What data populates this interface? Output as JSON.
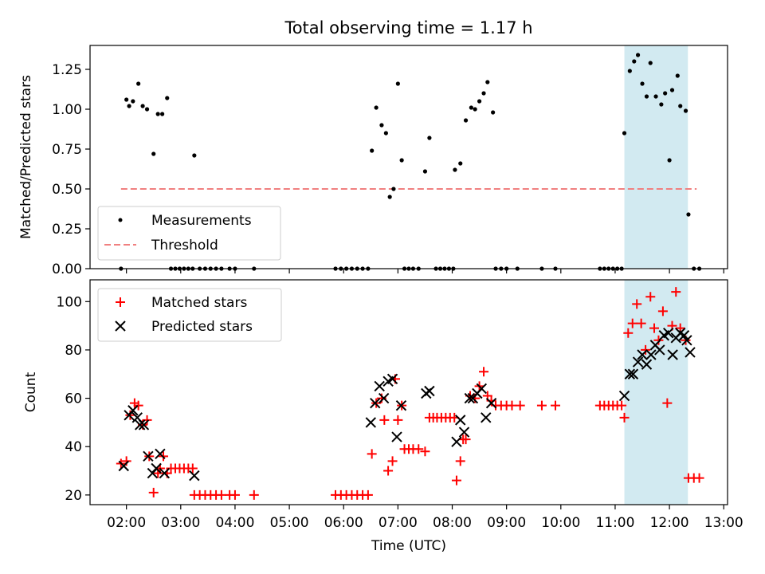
{
  "title": "Total observing time = 1.17 h",
  "chart_data": [
    {
      "type": "scatter",
      "ylabel": "Matched/Predicted stars",
      "ylim": [
        0,
        1.4
      ],
      "yticks": [
        0,
        0.25,
        0.5,
        0.75,
        1.0,
        1.25
      ],
      "ytick_labels": [
        "0.00",
        "0.25",
        "0.50",
        "0.75",
        "1.00",
        "1.25"
      ],
      "xlim": [
        1.33,
        13.07
      ],
      "grid": false,
      "legend_position": "lower-left",
      "highlight_span": {
        "x": [
          11.17,
          12.34
        ],
        "color": "#add8e6"
      },
      "threshold": {
        "label": "Threshold",
        "value": 0.5,
        "x": [
          1.9,
          12.5
        ],
        "color": "#f08080"
      },
      "series": [
        {
          "name": "Measurements",
          "color": "#000000",
          "points": [
            [
              1.9,
              0
            ],
            [
              2.0,
              1.06
            ],
            [
              2.05,
              1.02
            ],
            [
              2.12,
              1.05
            ],
            [
              2.22,
              1.16
            ],
            [
              2.3,
              1.02
            ],
            [
              2.38,
              1.0
            ],
            [
              2.5,
              0.72
            ],
            [
              2.58,
              0.97
            ],
            [
              2.66,
              0.97
            ],
            [
              2.75,
              1.07
            ],
            [
              2.82,
              0
            ],
            [
              2.9,
              0
            ],
            [
              2.98,
              0
            ],
            [
              3.06,
              0
            ],
            [
              3.14,
              0
            ],
            [
              3.22,
              0
            ],
            [
              3.25,
              0.71
            ],
            [
              3.35,
              0
            ],
            [
              3.45,
              0
            ],
            [
              3.55,
              0
            ],
            [
              3.65,
              0
            ],
            [
              3.75,
              0
            ],
            [
              3.9,
              0
            ],
            [
              4.0,
              0
            ],
            [
              4.35,
              0
            ],
            [
              5.85,
              0
            ],
            [
              5.95,
              0
            ],
            [
              6.05,
              0
            ],
            [
              6.15,
              0
            ],
            [
              6.25,
              0
            ],
            [
              6.35,
              0
            ],
            [
              6.45,
              0
            ],
            [
              6.52,
              0.74
            ],
            [
              6.6,
              1.01
            ],
            [
              6.7,
              0.9
            ],
            [
              6.78,
              0.85
            ],
            [
              6.85,
              0.45
            ],
            [
              6.92,
              0.5
            ],
            [
              7.0,
              1.16
            ],
            [
              7.07,
              0.68
            ],
            [
              7.12,
              0
            ],
            [
              7.2,
              0
            ],
            [
              7.28,
              0
            ],
            [
              7.38,
              0
            ],
            [
              7.5,
              0.61
            ],
            [
              7.58,
              0.82
            ],
            [
              7.7,
              0
            ],
            [
              7.78,
              0
            ],
            [
              7.86,
              0
            ],
            [
              7.94,
              0
            ],
            [
              8.02,
              0
            ],
            [
              8.05,
              0.62
            ],
            [
              8.15,
              0.66
            ],
            [
              8.25,
              0.93
            ],
            [
              8.35,
              1.01
            ],
            [
              8.42,
              1.0
            ],
            [
              8.5,
              1.05
            ],
            [
              8.58,
              1.1
            ],
            [
              8.65,
              1.17
            ],
            [
              8.75,
              0.98
            ],
            [
              8.8,
              0
            ],
            [
              8.9,
              0
            ],
            [
              9.0,
              0
            ],
            [
              9.2,
              0
            ],
            [
              9.65,
              0
            ],
            [
              9.9,
              0
            ],
            [
              10.72,
              0
            ],
            [
              10.8,
              0
            ],
            [
              10.88,
              0
            ],
            [
              10.96,
              0
            ],
            [
              11.04,
              0
            ],
            [
              11.12,
              0
            ],
            [
              11.17,
              0.85
            ],
            [
              11.27,
              1.24
            ],
            [
              11.35,
              1.3
            ],
            [
              11.42,
              1.34
            ],
            [
              11.5,
              1.16
            ],
            [
              11.58,
              1.08
            ],
            [
              11.65,
              1.29
            ],
            [
              11.75,
              1.08
            ],
            [
              11.85,
              1.03
            ],
            [
              11.92,
              1.1
            ],
            [
              12.0,
              0.68
            ],
            [
              12.05,
              1.12
            ],
            [
              12.15,
              1.21
            ],
            [
              12.2,
              1.02
            ],
            [
              12.3,
              0.99
            ],
            [
              12.35,
              0.34
            ],
            [
              12.45,
              0
            ],
            [
              12.55,
              0
            ]
          ]
        },
        {
          "name": "Threshold",
          "style": "dashed",
          "color": "#f08080",
          "points": [
            [
              1.9,
              0.5
            ],
            [
              12.5,
              0.5
            ]
          ]
        }
      ]
    },
    {
      "type": "scatter",
      "xlabel": "Time (UTC)",
      "ylabel": "Count",
      "ylim": [
        16,
        109
      ],
      "yticks": [
        20,
        40,
        60,
        80,
        100
      ],
      "ytick_labels": [
        "20",
        "40",
        "60",
        "80",
        "100"
      ],
      "xlim": [
        1.33,
        13.07
      ],
      "xticks": [
        2,
        3,
        4,
        5,
        6,
        7,
        8,
        9,
        10,
        11,
        12,
        13
      ],
      "xtick_labels": [
        "02:00",
        "03:00",
        "04:00",
        "05:00",
        "06:00",
        "07:00",
        "08:00",
        "09:00",
        "10:00",
        "11:00",
        "12:00",
        "13:00"
      ],
      "grid": false,
      "legend_position": "upper-left",
      "highlight_span": {
        "x": [
          11.17,
          12.34
        ],
        "color": "#add8e6"
      },
      "series": [
        {
          "name": "Matched stars",
          "marker": "plus",
          "color": "#ff0000",
          "points": [
            [
              1.9,
              33
            ],
            [
              2.0,
              34
            ],
            [
              2.07,
              53
            ],
            [
              2.15,
              58
            ],
            [
              2.22,
              57
            ],
            [
              2.3,
              49
            ],
            [
              2.38,
              51
            ],
            [
              2.42,
              36
            ],
            [
              2.5,
              21
            ],
            [
              2.58,
              29
            ],
            [
              2.62,
              31
            ],
            [
              2.68,
              36
            ],
            [
              2.75,
              29
            ],
            [
              2.82,
              31
            ],
            [
              2.9,
              31
            ],
            [
              2.98,
              31
            ],
            [
              3.06,
              31
            ],
            [
              3.14,
              31
            ],
            [
              3.22,
              31
            ],
            [
              3.25,
              20
            ],
            [
              3.35,
              20
            ],
            [
              3.45,
              20
            ],
            [
              3.55,
              20
            ],
            [
              3.65,
              20
            ],
            [
              3.75,
              20
            ],
            [
              3.9,
              20
            ],
            [
              4.0,
              20
            ],
            [
              4.35,
              20
            ],
            [
              5.85,
              20
            ],
            [
              5.95,
              20
            ],
            [
              6.05,
              20
            ],
            [
              6.15,
              20
            ],
            [
              6.25,
              20
            ],
            [
              6.35,
              20
            ],
            [
              6.45,
              20
            ],
            [
              6.52,
              37
            ],
            [
              6.6,
              58
            ],
            [
              6.7,
              60
            ],
            [
              6.75,
              51
            ],
            [
              6.82,
              30
            ],
            [
              6.9,
              34
            ],
            [
              6.95,
              68
            ],
            [
              7.0,
              51
            ],
            [
              7.07,
              57
            ],
            [
              7.12,
              39
            ],
            [
              7.2,
              39
            ],
            [
              7.28,
              39
            ],
            [
              7.38,
              39
            ],
            [
              7.5,
              38
            ],
            [
              7.58,
              52
            ],
            [
              7.65,
              52
            ],
            [
              7.72,
              52
            ],
            [
              7.8,
              52
            ],
            [
              7.88,
              52
            ],
            [
              7.96,
              52
            ],
            [
              8.04,
              52
            ],
            [
              8.08,
              26
            ],
            [
              8.15,
              34
            ],
            [
              8.2,
              43
            ],
            [
              8.25,
              43
            ],
            [
              8.33,
              61
            ],
            [
              8.42,
              60
            ],
            [
              8.5,
              65
            ],
            [
              8.58,
              71
            ],
            [
              8.65,
              61
            ],
            [
              8.72,
              59
            ],
            [
              8.8,
              57
            ],
            [
              8.9,
              57
            ],
            [
              9.0,
              57
            ],
            [
              9.1,
              57
            ],
            [
              9.25,
              57
            ],
            [
              9.65,
              57
            ],
            [
              9.9,
              57
            ],
            [
              10.72,
              57
            ],
            [
              10.8,
              57
            ],
            [
              10.88,
              57
            ],
            [
              10.96,
              57
            ],
            [
              11.04,
              57
            ],
            [
              11.12,
              57
            ],
            [
              11.17,
              52
            ],
            [
              11.24,
              87
            ],
            [
              11.32,
              91
            ],
            [
              11.4,
              99
            ],
            [
              11.48,
              91
            ],
            [
              11.56,
              80
            ],
            [
              11.65,
              102
            ],
            [
              11.72,
              89
            ],
            [
              11.8,
              84
            ],
            [
              11.88,
              96
            ],
            [
              11.96,
              58
            ],
            [
              12.05,
              90
            ],
            [
              12.12,
              104
            ],
            [
              12.2,
              89
            ],
            [
              12.3,
              84
            ],
            [
              12.35,
              27
            ],
            [
              12.45,
              27
            ],
            [
              12.55,
              27
            ]
          ]
        },
        {
          "name": "Predicted stars",
          "marker": "x",
          "color": "#000000",
          "points": [
            [
              1.95,
              32
            ],
            [
              2.05,
              53
            ],
            [
              2.12,
              55
            ],
            [
              2.2,
              52
            ],
            [
              2.25,
              49
            ],
            [
              2.32,
              49
            ],
            [
              2.4,
              36
            ],
            [
              2.48,
              29
            ],
            [
              2.55,
              31
            ],
            [
              2.62,
              37
            ],
            [
              2.7,
              29
            ],
            [
              3.25,
              28
            ],
            [
              6.5,
              50
            ],
            [
              6.58,
              58
            ],
            [
              6.66,
              65
            ],
            [
              6.74,
              60
            ],
            [
              6.82,
              67
            ],
            [
              6.9,
              68
            ],
            [
              6.98,
              44
            ],
            [
              7.06,
              57
            ],
            [
              7.52,
              62
            ],
            [
              7.58,
              63
            ],
            [
              8.08,
              42
            ],
            [
              8.15,
              51
            ],
            [
              8.22,
              46
            ],
            [
              8.32,
              60
            ],
            [
              8.38,
              60
            ],
            [
              8.46,
              62
            ],
            [
              8.54,
              64
            ],
            [
              8.62,
              52
            ],
            [
              8.72,
              58
            ],
            [
              11.17,
              61
            ],
            [
              11.27,
              70
            ],
            [
              11.33,
              70
            ],
            [
              11.42,
              75
            ],
            [
              11.5,
              78
            ],
            [
              11.58,
              74
            ],
            [
              11.66,
              78
            ],
            [
              11.74,
              82
            ],
            [
              11.82,
              80
            ],
            [
              11.9,
              86
            ],
            [
              11.98,
              87
            ],
            [
              12.06,
              78
            ],
            [
              12.12,
              85
            ],
            [
              12.2,
              87
            ],
            [
              12.27,
              86
            ],
            [
              12.32,
              84
            ],
            [
              12.38,
              79
            ]
          ]
        }
      ]
    }
  ]
}
